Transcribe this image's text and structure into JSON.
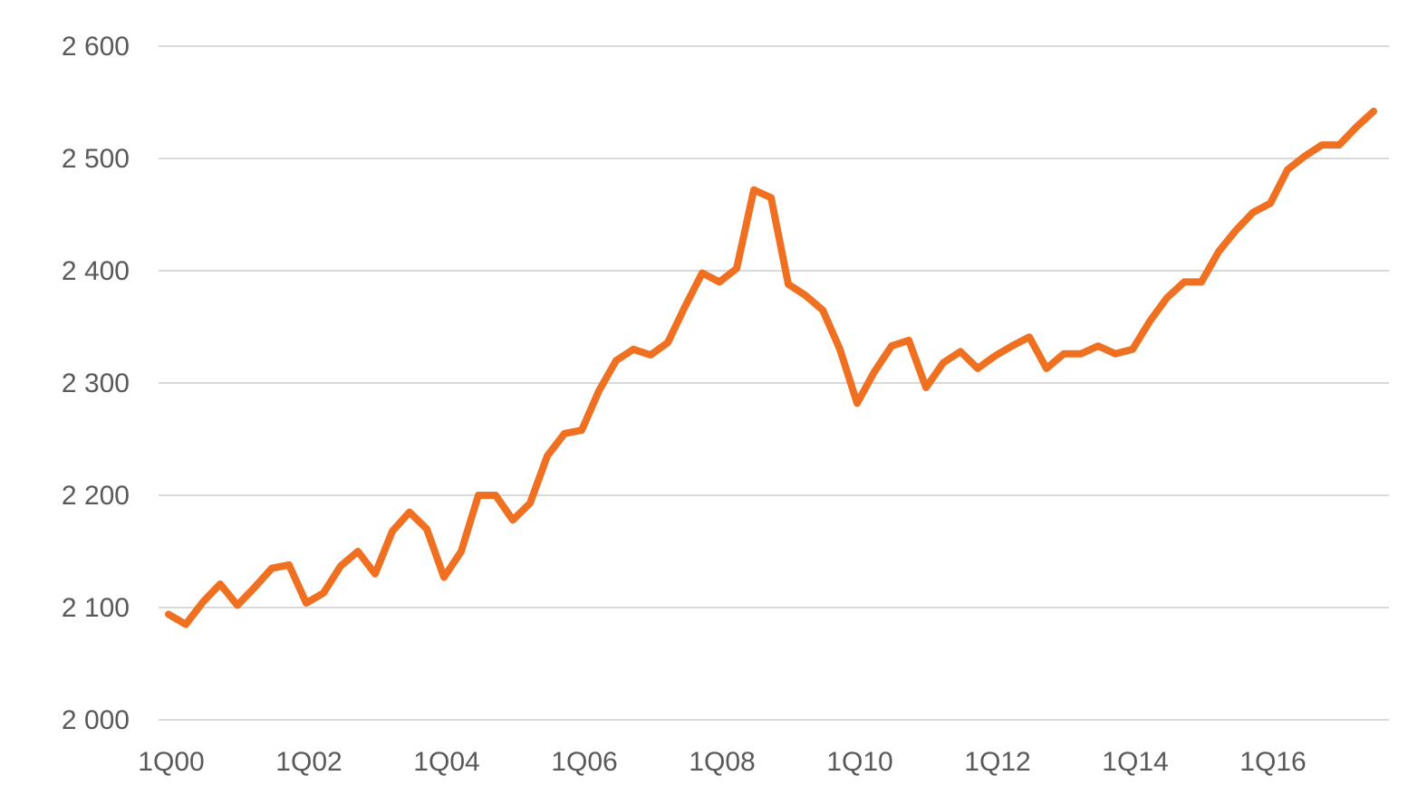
{
  "chart_data": {
    "type": "line",
    "title": "",
    "xlabel": "",
    "ylabel": "",
    "ylim": [
      2000,
      2600
    ],
    "yticks": [
      2000,
      2100,
      2200,
      2300,
      2400,
      2500,
      2600
    ],
    "ytick_labels": [
      "2 000",
      "2 100",
      "2 200",
      "2 300",
      "2 400",
      "2 500",
      "2 600"
    ],
    "xtick_labels": [
      "1Q00",
      "1Q02",
      "1Q04",
      "1Q06",
      "1Q08",
      "1Q10",
      "1Q12",
      "1Q14",
      "1Q16"
    ],
    "grid": true,
    "legend": "none",
    "line_color": "#f07022",
    "x": [
      "1Q00",
      "2Q00",
      "3Q00",
      "4Q00",
      "1Q01",
      "2Q01",
      "3Q01",
      "4Q01",
      "1Q02",
      "2Q02",
      "3Q02",
      "4Q02",
      "1Q03",
      "2Q03",
      "3Q03",
      "4Q03",
      "1Q04",
      "2Q04",
      "3Q04",
      "4Q04",
      "1Q05",
      "2Q05",
      "3Q05",
      "4Q05",
      "1Q06",
      "2Q06",
      "3Q06",
      "4Q06",
      "1Q07",
      "2Q07",
      "3Q07",
      "4Q07",
      "1Q08",
      "2Q08",
      "3Q08",
      "4Q08",
      "1Q09",
      "2Q09",
      "3Q09",
      "4Q09",
      "1Q10",
      "2Q10",
      "3Q10",
      "4Q10",
      "1Q11",
      "2Q11",
      "3Q11",
      "4Q11",
      "1Q12",
      "2Q12",
      "3Q12",
      "4Q12",
      "1Q13",
      "2Q13",
      "3Q13",
      "4Q13",
      "1Q14",
      "2Q14",
      "3Q14",
      "4Q14",
      "1Q15",
      "2Q15",
      "3Q15",
      "4Q15",
      "1Q16",
      "2Q16",
      "3Q16",
      "4Q16",
      "1Q17",
      "2Q17",
      "3Q17"
    ],
    "series": [
      {
        "values": [
          2094,
          2085,
          2105,
          2121,
          2102,
          2118,
          2135,
          2138,
          2104,
          2113,
          2137,
          2150,
          2130,
          2168,
          2185,
          2170,
          2127,
          2150,
          2200,
          2200,
          2178,
          2193,
          2235,
          2255,
          2258,
          2293,
          2320,
          2330,
          2325,
          2336,
          2368,
          2398,
          2390,
          2402,
          2472,
          2465,
          2388,
          2378,
          2365,
          2330,
          2282,
          2310,
          2333,
          2338,
          2296,
          2318,
          2328,
          2313,
          2324,
          2333,
          2341,
          2313,
          2326,
          2326,
          2333,
          2326,
          2330,
          2355,
          2376,
          2390,
          2390,
          2417,
          2436,
          2452,
          2460,
          2490,
          2502,
          2512,
          2512,
          2528,
          2542
        ]
      }
    ]
  }
}
